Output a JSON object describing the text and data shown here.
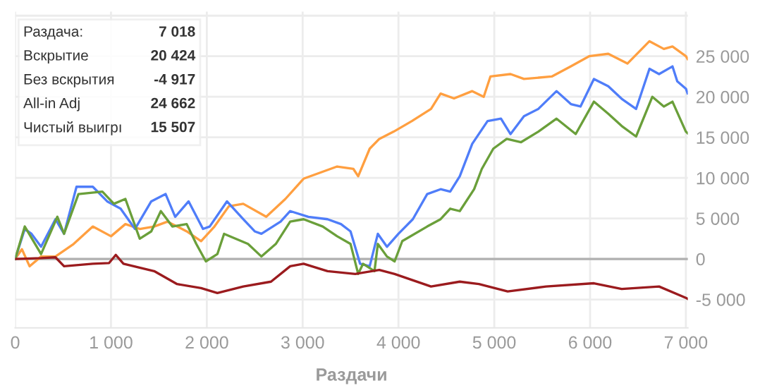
{
  "chart_data": {
    "type": "line",
    "xlabel": "Раздачи",
    "xlim": [
      0,
      7020
    ],
    "xticks": [
      {
        "value": 0,
        "label": "0"
      },
      {
        "value": 1000,
        "label": "1 000"
      },
      {
        "value": 2000,
        "label": "2 000"
      },
      {
        "value": 3000,
        "label": "3 000"
      },
      {
        "value": 4000,
        "label": "4 000"
      },
      {
        "value": 5000,
        "label": "5 000"
      },
      {
        "value": 6000,
        "label": "6 000"
      },
      {
        "value": 7000,
        "label": "7 000"
      }
    ],
    "ylim": [
      -8500,
      30500
    ],
    "yticks": [
      {
        "value": -5000,
        "label": "-5 000"
      },
      {
        "value": 0,
        "label": "0"
      },
      {
        "value": 5000,
        "label": "5 000"
      },
      {
        "value": 10000,
        "label": "10 000"
      },
      {
        "value": 15000,
        "label": "15 000"
      },
      {
        "value": 20000,
        "label": "20 000"
      },
      {
        "value": 25000,
        "label": "25 000"
      },
      {
        "value": 30000,
        "label": null
      }
    ],
    "grid": true,
    "ref_lines": [
      {
        "axis": "y",
        "value": 0,
        "label": null,
        "color": "#b0b0b0"
      }
    ],
    "annotations": [
      "Раздача:",
      "7 018",
      "Вскрытие",
      "20 424",
      "Без вскрытия",
      "-4 917",
      "All-in Adj",
      "24 662",
      "Чистый выигрı",
      "15 507"
    ],
    "series": [
      {
        "color": "#ff9f40",
        "x": [
          0,
          70,
          150,
          270,
          420,
          610,
          810,
          1000,
          1150,
          1300,
          1450,
          1590,
          1790,
          1940,
          2080,
          2230,
          2380,
          2620,
          2820,
          3010,
          3360,
          3530,
          3580,
          3700,
          3800,
          3950,
          4140,
          4340,
          4440,
          4580,
          4770,
          4890,
          4960,
          5170,
          5310,
          5600,
          5800,
          5990,
          6190,
          6390,
          6620,
          6770,
          6860,
          7000,
          7018
        ],
        "values": [
          0,
          1200,
          -900,
          300,
          300,
          1850,
          4000,
          2800,
          4300,
          3700,
          4000,
          4600,
          3400,
          2200,
          4000,
          6500,
          6800,
          5200,
          7400,
          9900,
          11400,
          11100,
          10200,
          13600,
          14800,
          15700,
          17000,
          18500,
          20400,
          19800,
          20700,
          20000,
          22500,
          22800,
          22200,
          22500,
          23750,
          25000,
          25300,
          24100,
          26850,
          25900,
          26200,
          25000,
          24662
        ]
      },
      {
        "color": "#4f7df9",
        "x": [
          0,
          100,
          170,
          270,
          420,
          510,
          640,
          810,
          960,
          1100,
          1250,
          1420,
          1570,
          1670,
          1810,
          1960,
          2030,
          2210,
          2380,
          2500,
          2570,
          2770,
          2870,
          3060,
          3260,
          3400,
          3500,
          3600,
          3700,
          3785,
          3880,
          4000,
          4150,
          4300,
          4440,
          4540,
          4640,
          4770,
          4930,
          5070,
          5170,
          5310,
          5460,
          5650,
          5800,
          5900,
          6040,
          6190,
          6330,
          6480,
          6620,
          6720,
          6860,
          6910,
          7000,
          7018
        ],
        "values": [
          0,
          3700,
          3100,
          1500,
          4900,
          3100,
          8900,
          8900,
          7100,
          6200,
          3700,
          7100,
          8000,
          5200,
          7100,
          3700,
          4000,
          7100,
          4900,
          3400,
          3100,
          4600,
          5900,
          5200,
          4900,
          4300,
          3400,
          -600,
          -900,
          3100,
          1500,
          3100,
          4900,
          8000,
          8600,
          8300,
          10200,
          14200,
          17000,
          17300,
          15400,
          17600,
          18500,
          20700,
          19100,
          18800,
          22200,
          21300,
          19750,
          18500,
          23450,
          22800,
          23750,
          21900,
          21000,
          20424
        ]
      },
      {
        "color": "#6a9f3a",
        "x": [
          0,
          100,
          270,
          440,
          510,
          660,
          910,
          1030,
          1150,
          1300,
          1420,
          1520,
          1640,
          1790,
          1890,
          1990,
          2110,
          2180,
          2430,
          2570,
          2720,
          2870,
          3010,
          3210,
          3360,
          3500,
          3580,
          3630,
          3750,
          3785,
          3880,
          3960,
          4040,
          4300,
          4440,
          4540,
          4640,
          4790,
          4870,
          4990,
          5130,
          5280,
          5460,
          5650,
          5850,
          6040,
          6190,
          6330,
          6480,
          6650,
          6770,
          6860,
          7000,
          7018
        ],
        "values": [
          0,
          4000,
          600,
          5200,
          3100,
          8000,
          8300,
          6800,
          7400,
          2500,
          3400,
          5900,
          4000,
          4300,
          1850,
          -300,
          600,
          3100,
          1850,
          300,
          1850,
          4600,
          4900,
          4000,
          2800,
          1850,
          -1850,
          -600,
          -1500,
          1850,
          300,
          -300,
          2200,
          4000,
          4900,
          6200,
          5900,
          8600,
          11100,
          13600,
          14800,
          14400,
          15700,
          17300,
          15400,
          19400,
          17900,
          16400,
          15100,
          20000,
          18800,
          19400,
          15700,
          15507
        ]
      },
      {
        "color": "#9b1b1e",
        "x": [
          0,
          270,
          420,
          510,
          810,
          980,
          1050,
          1130,
          1450,
          1690,
          1940,
          2110,
          2380,
          2670,
          2870,
          3010,
          3260,
          3550,
          3800,
          3960,
          4340,
          4640,
          4840,
          5140,
          5540,
          6040,
          6330,
          6720,
          7000,
          7018
        ],
        "values": [
          0,
          100,
          200,
          -900,
          -600,
          -500,
          500,
          -600,
          -1500,
          -3100,
          -3600,
          -4200,
          -3400,
          -2800,
          -900,
          -600,
          -1500,
          -1850,
          -1350,
          -1850,
          -3400,
          -2800,
          -3100,
          -4000,
          -3400,
          -3000,
          -3700,
          -3400,
          -4800,
          -4917
        ]
      }
    ]
  }
}
